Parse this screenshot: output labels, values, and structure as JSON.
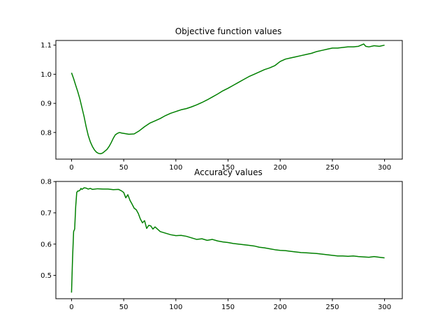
{
  "chart_data": [
    {
      "type": "line",
      "title": "Objective function values",
      "xlabel": "",
      "ylabel": "",
      "xlim": [
        -15,
        317
      ],
      "ylim": [
        0.7085,
        1.116
      ],
      "grid": false,
      "color": "#008000",
      "x_ticks": [
        0,
        50,
        100,
        150,
        200,
        250,
        300
      ],
      "y_ticks": [
        0.8,
        0.9,
        1.0,
        1.1
      ],
      "x": [
        0,
        2,
        4,
        6,
        8,
        10,
        12,
        14,
        16,
        18,
        20,
        22,
        24,
        26,
        28,
        30,
        32,
        34,
        36,
        38,
        40,
        42,
        44,
        46,
        48,
        50,
        55,
        60,
        65,
        70,
        75,
        80,
        85,
        90,
        95,
        100,
        105,
        110,
        115,
        120,
        125,
        130,
        135,
        140,
        145,
        150,
        155,
        160,
        165,
        170,
        175,
        180,
        185,
        190,
        195,
        200,
        205,
        210,
        215,
        220,
        225,
        230,
        235,
        240,
        245,
        250,
        255,
        260,
        265,
        270,
        275,
        280,
        282,
        285,
        290,
        295,
        300
      ],
      "y": [
        1.005,
        0.985,
        0.962,
        0.94,
        0.915,
        0.885,
        0.855,
        0.82,
        0.79,
        0.768,
        0.752,
        0.74,
        0.732,
        0.728,
        0.727,
        0.73,
        0.736,
        0.742,
        0.752,
        0.765,
        0.78,
        0.792,
        0.797,
        0.8,
        0.798,
        0.797,
        0.794,
        0.795,
        0.806,
        0.82,
        0.832,
        0.84,
        0.848,
        0.858,
        0.866,
        0.872,
        0.878,
        0.882,
        0.888,
        0.895,
        0.903,
        0.912,
        0.922,
        0.932,
        0.943,
        0.952,
        0.962,
        0.972,
        0.982,
        0.992,
        1.0,
        1.008,
        1.016,
        1.022,
        1.03,
        1.044,
        1.052,
        1.056,
        1.06,
        1.064,
        1.068,
        1.072,
        1.078,
        1.082,
        1.086,
        1.09,
        1.09,
        1.092,
        1.094,
        1.094,
        1.096,
        1.104,
        1.096,
        1.094,
        1.098,
        1.096,
        1.1
      ]
    },
    {
      "type": "line",
      "title": "Accuracy values",
      "xlabel": "",
      "ylabel": "",
      "xlim": [
        -15,
        317
      ],
      "ylim": [
        0.4254,
        0.8003
      ],
      "grid": false,
      "color": "#008000",
      "x_ticks": [
        0,
        50,
        100,
        150,
        200,
        250,
        300
      ],
      "y_ticks": [
        0.5,
        0.6,
        0.7,
        0.8
      ],
      "x": [
        0,
        1,
        2,
        3,
        4,
        5,
        6,
        7,
        8,
        9,
        10,
        12,
        14,
        16,
        18,
        20,
        25,
        30,
        35,
        40,
        45,
        48,
        50,
        52,
        54,
        56,
        58,
        60,
        62,
        64,
        66,
        68,
        70,
        72,
        74,
        76,
        78,
        80,
        85,
        90,
        95,
        100,
        105,
        110,
        115,
        120,
        125,
        130,
        135,
        140,
        145,
        150,
        155,
        160,
        165,
        170,
        175,
        180,
        185,
        190,
        195,
        200,
        205,
        210,
        215,
        220,
        225,
        230,
        235,
        240,
        245,
        250,
        255,
        260,
        265,
        270,
        275,
        280,
        285,
        290,
        295,
        300
      ],
      "y": [
        0.445,
        0.555,
        0.64,
        0.648,
        0.72,
        0.765,
        0.77,
        0.77,
        0.772,
        0.778,
        0.775,
        0.78,
        0.779,
        0.776,
        0.778,
        0.775,
        0.777,
        0.776,
        0.776,
        0.774,
        0.775,
        0.77,
        0.765,
        0.748,
        0.758,
        0.74,
        0.728,
        0.715,
        0.71,
        0.698,
        0.68,
        0.668,
        0.675,
        0.65,
        0.66,
        0.658,
        0.648,
        0.655,
        0.64,
        0.635,
        0.63,
        0.627,
        0.628,
        0.625,
        0.62,
        0.615,
        0.617,
        0.612,
        0.615,
        0.61,
        0.607,
        0.605,
        0.602,
        0.6,
        0.598,
        0.596,
        0.594,
        0.59,
        0.588,
        0.585,
        0.582,
        0.58,
        0.579,
        0.577,
        0.575,
        0.573,
        0.572,
        0.571,
        0.57,
        0.568,
        0.566,
        0.564,
        0.562,
        0.562,
        0.561,
        0.562,
        0.56,
        0.559,
        0.558,
        0.56,
        0.558,
        0.556
      ]
    }
  ]
}
